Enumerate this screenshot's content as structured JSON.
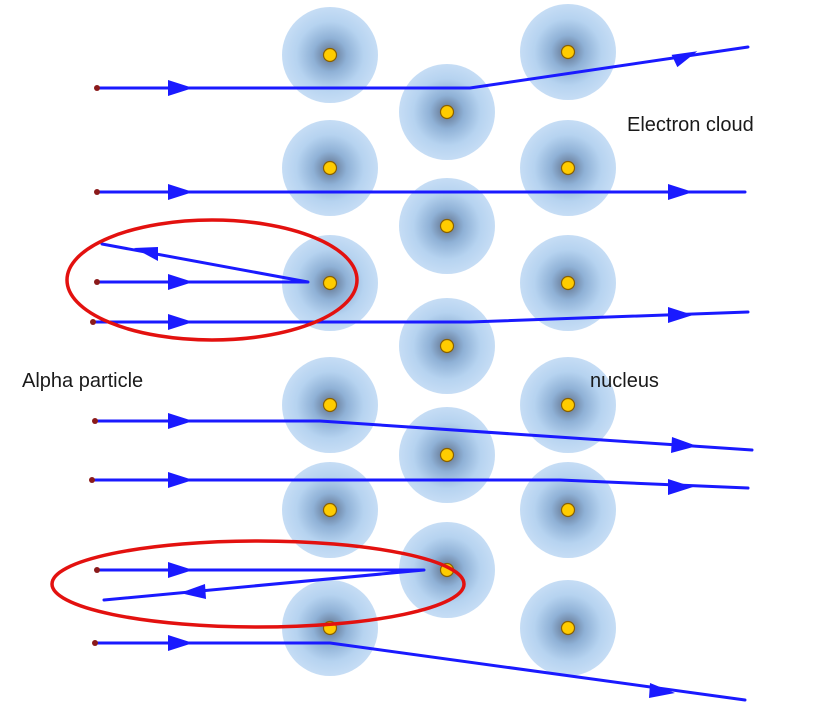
{
  "labels": {
    "electron_cloud": "Electron cloud",
    "alpha_particle": "Alpha particle",
    "nucleus": "nucleus"
  },
  "colors": {
    "track": "#1a1aff",
    "nucleus_fill": "#ffcc00",
    "nucleus_stroke": "#9a6b00",
    "cloud_inner": "#6a7f9e",
    "cloud_outer": "#b9d5f2",
    "source": "#8b1a1a",
    "highlight": "#e3110f"
  }
}
